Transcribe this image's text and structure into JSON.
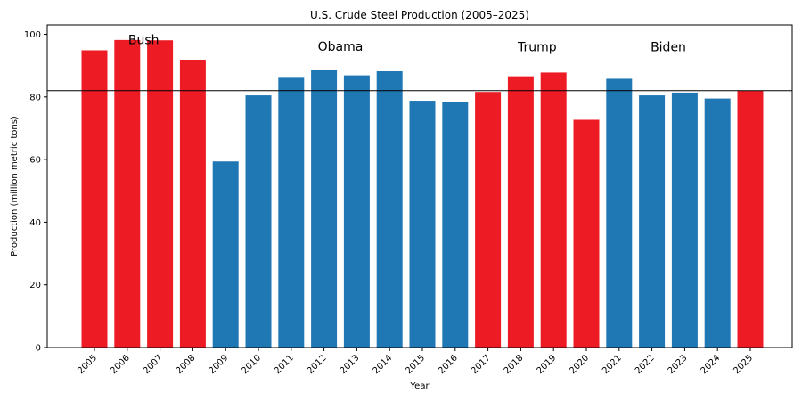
{
  "chart_data": {
    "type": "bar",
    "title": "U.S. Crude Steel Production (2005–2025)",
    "xlabel": "Year",
    "ylabel": "Production (million metric tons)",
    "ylim": [
      0,
      103
    ],
    "yticks": [
      0,
      20,
      40,
      60,
      80,
      100
    ],
    "categories": [
      "2005",
      "2006",
      "2007",
      "2008",
      "2009",
      "2010",
      "2011",
      "2012",
      "2013",
      "2014",
      "2015",
      "2016",
      "2017",
      "2018",
      "2019",
      "2020",
      "2021",
      "2022",
      "2023",
      "2024",
      "2025"
    ],
    "values": [
      94.9,
      98.2,
      98.1,
      91.9,
      59.4,
      80.5,
      86.4,
      88.7,
      86.9,
      88.2,
      78.8,
      78.5,
      81.6,
      86.6,
      87.8,
      72.7,
      85.8,
      80.5,
      81.4,
      79.5,
      82.0
    ],
    "parties": [
      "R",
      "R",
      "R",
      "R",
      "D",
      "D",
      "D",
      "D",
      "D",
      "D",
      "D",
      "D",
      "R",
      "R",
      "R",
      "R",
      "D",
      "D",
      "D",
      "D",
      "R"
    ],
    "colors": {
      "R": "#ed1c24",
      "D": "#1f77b4"
    },
    "reference_line": 82.0,
    "annotations": [
      {
        "text": "Bush",
        "year": "2006.5",
        "y": 98.3
      },
      {
        "text": "Obama",
        "year": "2012.5",
        "y": 96.2
      },
      {
        "text": "Trump",
        "year": "2018.5",
        "y": 96.0
      },
      {
        "text": "Biden",
        "year": "2022.5",
        "y": 96.0
      }
    ],
    "grid": false,
    "legend": false
  }
}
